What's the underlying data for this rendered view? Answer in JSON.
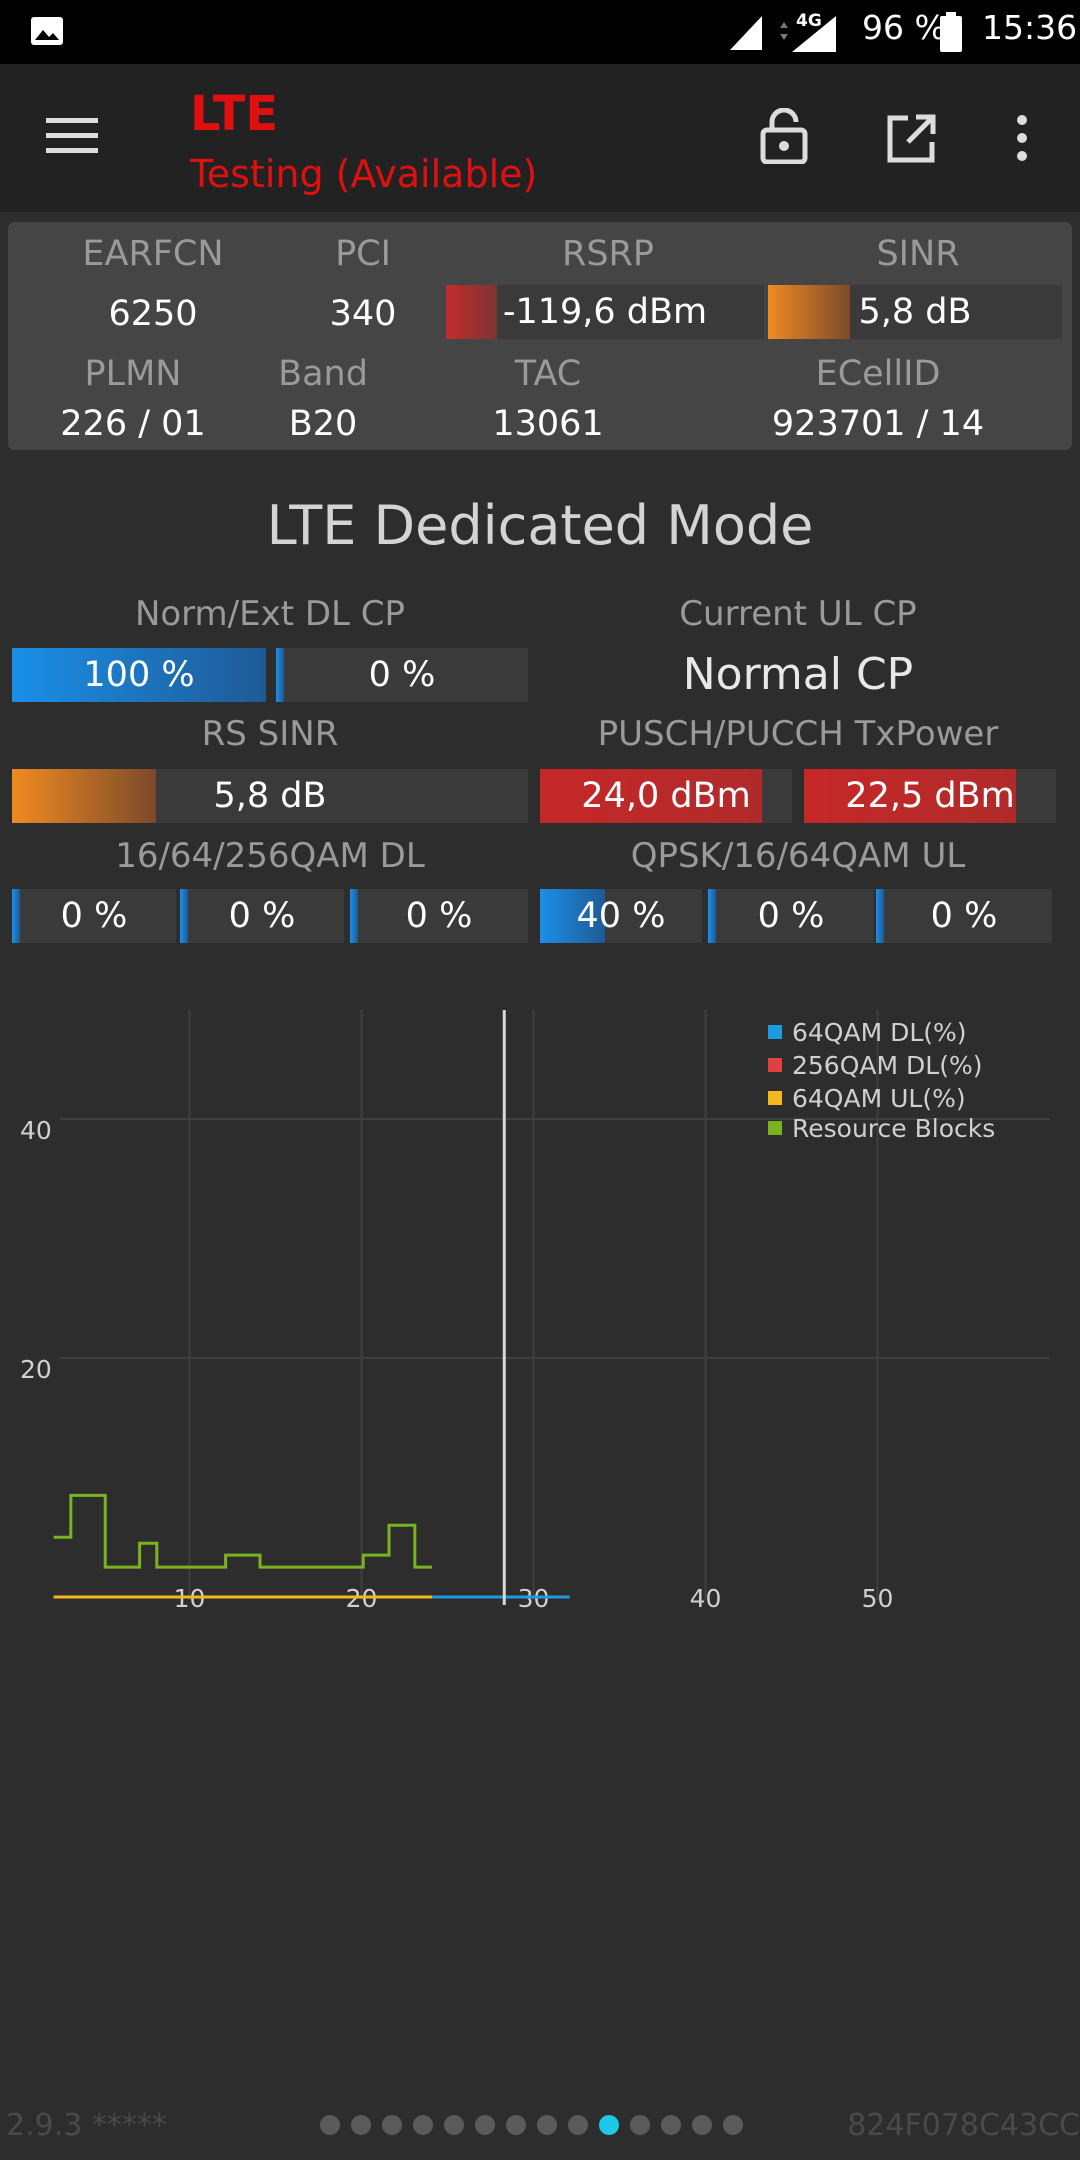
{
  "status_bar": {
    "battery": "96 %",
    "time": "15:36",
    "network": "4G",
    "icons": [
      "image-icon",
      "signal-icon",
      "signal-4g-icon",
      "battery-icon"
    ]
  },
  "toolbar": {
    "title": "LTE",
    "subtitle": "Testing (Available)",
    "icons": [
      "menu-icon",
      "lock-open-icon",
      "open-external-icon",
      "more-vert-icon"
    ]
  },
  "cell_info": {
    "earfcn_label": "EARFCN",
    "earfcn": "6250",
    "pci_label": "PCI",
    "pci": "340",
    "rsrp_label": "RSRP",
    "rsrp": "-119,6 dBm",
    "rsrp_level": 0.16,
    "sinr_label": "SINR",
    "sinr": "5,8 dB",
    "sinr_level": 0.28,
    "plmn_label": "PLMN",
    "plmn": "226 / 01",
    "band_label": "Band",
    "band": "B20",
    "tac_label": "TAC",
    "tac": "13061",
    "ecellid_label": "ECellID",
    "ecellid": "923701 / 14"
  },
  "dedicated": {
    "title": "LTE Dedicated Mode",
    "cp_label": "Norm/Ext DL CP",
    "cp_norm": "100 %",
    "cp_norm_level": 1.0,
    "cp_ext": "0 %",
    "cp_ext_level": 0.0,
    "ul_cp_label": "Current UL CP",
    "ul_cp": "Normal CP",
    "rs_sinr_label": "RS SINR",
    "rs_sinr": "5,8 dB",
    "rs_sinr_level": 0.28,
    "txpower_label": "PUSCH/PUCCH TxPower",
    "pusch": "24,0 dBm",
    "pusch_level": 0.88,
    "pucch": "22,5 dBm",
    "pucch_level": 0.84,
    "qam_dl_label": "16/64/256QAM DL",
    "qam_dl": [
      "0 %",
      "0 %",
      "0 %"
    ],
    "qam_dl_levels": [
      0,
      0,
      0
    ],
    "qam_ul_label": "QPSK/16/64QAM UL",
    "qam_ul": [
      "40 %",
      "0 %",
      "0 %"
    ],
    "qam_ul_levels": [
      0.4,
      0,
      0
    ]
  },
  "chart_data": {
    "type": "line",
    "xlim": [
      0,
      60
    ],
    "ylim": [
      0,
      100
    ],
    "x_ticks": [
      "10",
      "20",
      "30",
      "40",
      "50"
    ],
    "y_ticks": [
      "20",
      "40",
      "60",
      "80"
    ],
    "grid": true,
    "legend_position": "top-right",
    "series": [
      {
        "name": "64QAM DL(%)",
        "color": "#1e9be0",
        "x": [
          0,
          30
        ],
        "y": [
          0,
          0
        ]
      },
      {
        "name": "256QAM DL(%)",
        "color": "#e04040",
        "x": [
          1,
          2,
          3,
          4,
          5,
          6,
          7,
          8,
          10,
          11,
          12,
          13,
          14,
          16,
          17,
          18
        ],
        "y": [
          0,
          0,
          0,
          0,
          0,
          0,
          0,
          0,
          0,
          0,
          0,
          0,
          0,
          0,
          0,
          0
        ]
      },
      {
        "name": "64QAM UL(%)",
        "color": "#f5b820",
        "x": [
          0,
          1,
          18,
          19,
          20,
          21,
          22
        ],
        "y": [
          0,
          0,
          0,
          0,
          0,
          0,
          0
        ]
      },
      {
        "name": "Resource Blocks",
        "color": "#7bb320",
        "x": [
          0,
          1,
          1,
          3,
          3,
          5,
          5,
          6,
          6,
          10,
          10,
          12,
          12,
          18,
          18,
          19.5,
          19.5,
          21,
          21,
          22
        ],
        "y": [
          5,
          5,
          8.5,
          8.5,
          2.5,
          2.5,
          4.5,
          4.5,
          2.5,
          2.5,
          3.5,
          3.5,
          2.5,
          2.5,
          3.5,
          3.5,
          6,
          6,
          2.5,
          2.5
        ]
      }
    ],
    "cursor_x": 28
  },
  "footer": {
    "version": "2.9.3 *****",
    "device_id": "824F078C43CC",
    "page_count": 14,
    "active_page": 10
  }
}
